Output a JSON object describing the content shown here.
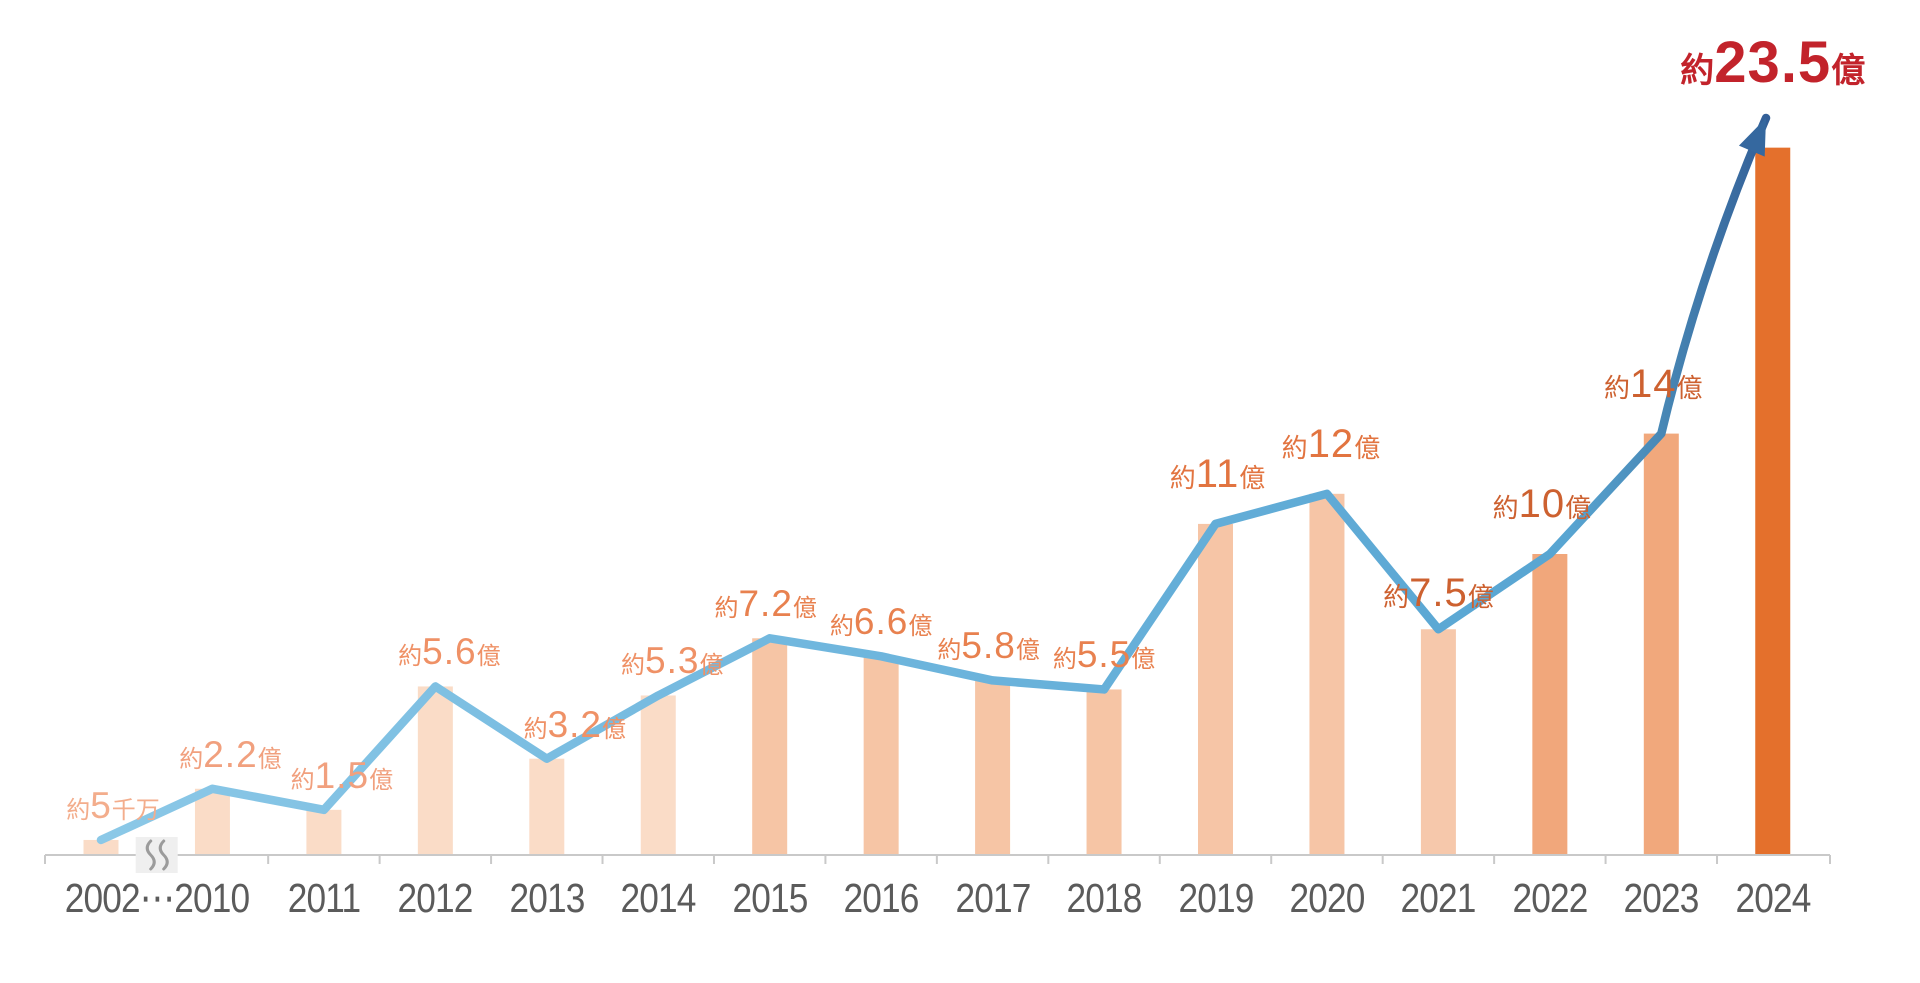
{
  "chart_data": {
    "type": "bar",
    "subtype": "bar-with-trend-line-and-arrow",
    "title": "",
    "xlabel": "",
    "ylabel": "",
    "unit": "億",
    "grid": false,
    "legend": false,
    "ylim": [
      0,
      25
    ],
    "categories": [
      "2002",
      "2010",
      "2011",
      "2012",
      "2013",
      "2014",
      "2015",
      "2016",
      "2017",
      "2018",
      "2019",
      "2020",
      "2021",
      "2022",
      "2023",
      "2024"
    ],
    "values": [
      0.5,
      2.2,
      1.5,
      5.6,
      3.2,
      5.3,
      7.2,
      6.6,
      5.8,
      5.5,
      11,
      12,
      7.5,
      10,
      14,
      23.5
    ],
    "value_labels": [
      {
        "prefix": "約",
        "number": "5",
        "suffix": "千万"
      },
      {
        "prefix": "約",
        "number": "2.2",
        "suffix": "億"
      },
      {
        "prefix": "約",
        "number": "1.5",
        "suffix": "億"
      },
      {
        "prefix": "約",
        "number": "5.6",
        "suffix": "億"
      },
      {
        "prefix": "約",
        "number": "3.2",
        "suffix": "億"
      },
      {
        "prefix": "約",
        "number": "5.3",
        "suffix": "億"
      },
      {
        "prefix": "約",
        "number": "7.2",
        "suffix": "億"
      },
      {
        "prefix": "約",
        "number": "6.6",
        "suffix": "億"
      },
      {
        "prefix": "約",
        "number": "5.8",
        "suffix": "億"
      },
      {
        "prefix": "約",
        "number": "5.5",
        "suffix": "億"
      },
      {
        "prefix": "約",
        "number": "11",
        "suffix": "億"
      },
      {
        "prefix": "約",
        "number": "12",
        "suffix": "億"
      },
      {
        "prefix": "約",
        "number": "7.5",
        "suffix": "億"
      },
      {
        "prefix": "約",
        "number": "10",
        "suffix": "億"
      },
      {
        "prefix": "約",
        "number": "14",
        "suffix": "億"
      },
      {
        "prefix": "約",
        "number": "23.5",
        "suffix": "億"
      }
    ],
    "x_axis": {
      "merged_first_label": "2002⋯2010",
      "tick_labels": [
        "2011",
        "2012",
        "2013",
        "2014",
        "2015",
        "2016",
        "2017",
        "2018",
        "2019",
        "2020",
        "2021",
        "2022",
        "2023",
        "2024"
      ],
      "axis_break_between": [
        "2002",
        "2010"
      ]
    },
    "annotations": [
      "axis break (wavy mark) between 2002 and 2010",
      "upward arrow from 2023 to 2024 peak"
    ]
  },
  "styles": {
    "background": "#ffffff",
    "bar_colors": [
      "#fadcc7",
      "#fadcc7",
      "#fadcc7",
      "#fadcc7",
      "#fadcc7",
      "#fadcc7",
      "#f6c5a5",
      "#f6c5a5",
      "#f6c5a5",
      "#f6c5a5",
      "#f6c5a6",
      "#f6c5a6",
      "#f6c8ab",
      "#f1a77b",
      "#f1a87c",
      "#e4702c"
    ],
    "label_colors": [
      "#f3ad8c",
      "#f1a07e",
      "#f1a07e",
      "#ef9166",
      "#ef9166",
      "#ef9166",
      "#e8814f",
      "#e8814f",
      "#e8814f",
      "#e8814f",
      "#e27440",
      "#e27440",
      "#cd6130",
      "#cd6130",
      "#cd6130",
      "#c2232b"
    ],
    "line_gradient_stops": [
      {
        "offset": 0.0,
        "color": "#8bc8e7"
      },
      {
        "offset": 0.5,
        "color": "#6cb4dc"
      },
      {
        "offset": 0.88,
        "color": "#58a5d2"
      },
      {
        "offset": 0.94,
        "color": "#4786b4"
      },
      {
        "offset": 1.0,
        "color": "#335f97"
      }
    ],
    "arrow_color": "#35689f",
    "axis_color": "#c9c9c9",
    "year_label_color": "#5b5b5b",
    "break_box_color": "#efefef",
    "break_wave_color": "#9b9b9b"
  }
}
